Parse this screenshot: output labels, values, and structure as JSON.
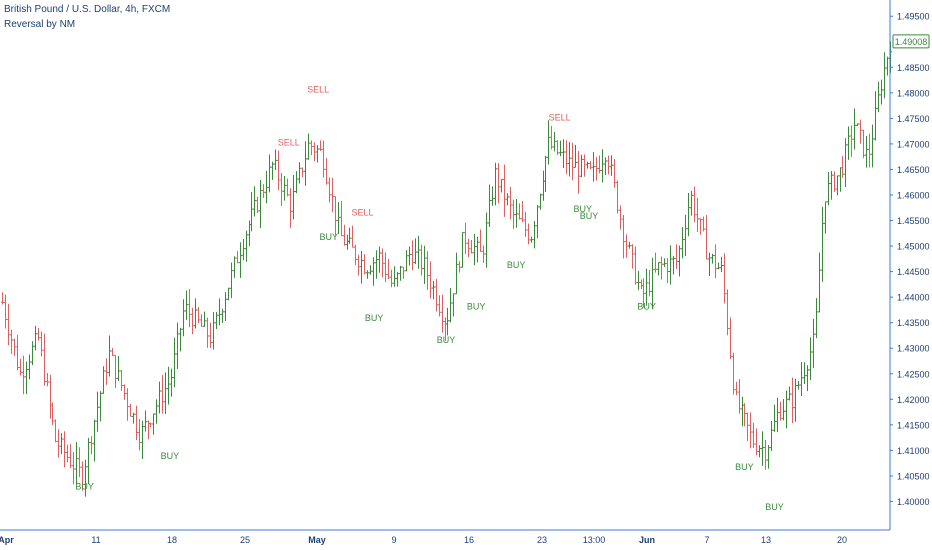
{
  "header": {
    "title": "British Pound / U.S. Dollar, 4h, FXCM",
    "indicator": "Reversal by NM"
  },
  "colors": {
    "up": "#3a8a3a",
    "down": "#e06060",
    "buy_label": "#3a8a3a",
    "sell_label": "#e06060",
    "axis": "#3c78d8",
    "axis_text": "#1f3f73",
    "last_price_box": "#3a8a3a"
  },
  "chart_data": {
    "type": "ohlc",
    "price_axis": {
      "min": 1.395,
      "max": 1.497,
      "ticks": [
        "1.49500",
        "1.48500",
        "1.48000",
        "1.47500",
        "1.47000",
        "1.46500",
        "1.46000",
        "1.45500",
        "1.45000",
        "1.44500",
        "1.44000",
        "1.43500",
        "1.43000",
        "1.42500",
        "1.42000",
        "1.41500",
        "1.41000",
        "1.40500",
        "1.40000"
      ],
      "last_price": "1.49008"
    },
    "time_axis": {
      "labels": [
        "Apr",
        "11",
        "18",
        "25",
        "May",
        "9",
        "16",
        "23",
        "13:00",
        "Jun",
        "7",
        "13",
        "20"
      ],
      "bold": [
        "Apr",
        "May",
        "Jun"
      ]
    },
    "keypoints": [
      [
        1.439,
        0
      ],
      [
        1.425,
        0.02
      ],
      [
        1.432,
        0.04
      ],
      [
        1.412,
        0.06
      ],
      [
        1.405,
        0.09
      ],
      [
        1.429,
        0.12
      ],
      [
        1.413,
        0.155
      ],
      [
        1.424,
        0.19
      ],
      [
        1.438,
        0.205
      ],
      [
        1.432,
        0.235
      ],
      [
        1.451,
        0.27
      ],
      [
        1.466,
        0.305
      ],
      [
        1.458,
        0.325
      ],
      [
        1.47,
        0.345
      ],
      [
        1.468,
        0.36
      ],
      [
        1.452,
        0.38
      ],
      [
        1.446,
        0.41
      ],
      [
        1.448,
        0.425
      ],
      [
        1.442,
        0.44
      ],
      [
        1.449,
        0.46
      ],
      [
        1.446,
        0.475
      ],
      [
        1.435,
        0.5
      ],
      [
        1.452,
        0.52
      ],
      [
        1.448,
        0.54
      ],
      [
        1.464,
        0.555
      ],
      [
        1.456,
        0.575
      ],
      [
        1.452,
        0.595
      ],
      [
        1.47,
        0.615
      ],
      [
        1.466,
        0.64
      ],
      [
        1.464,
        0.665
      ],
      [
        1.469,
        0.68
      ],
      [
        1.452,
        0.7
      ],
      [
        1.44,
        0.72
      ],
      [
        1.446,
        0.74
      ],
      [
        1.447,
        0.76
      ],
      [
        1.46,
        0.775
      ],
      [
        1.448,
        0.795
      ],
      [
        1.445,
        0.81
      ],
      [
        1.42,
        0.825
      ],
      [
        1.412,
        0.845
      ],
      [
        1.41,
        0.86
      ],
      [
        1.418,
        0.875
      ],
      [
        1.42,
        0.89
      ],
      [
        1.427,
        0.905
      ],
      [
        1.432,
        0.915
      ],
      [
        1.46,
        0.925
      ],
      [
        1.465,
        0.945
      ],
      [
        1.474,
        0.96
      ],
      [
        1.467,
        0.975
      ],
      [
        1.482,
        0.99
      ],
      [
        1.49,
        1.0
      ]
    ],
    "signals": [
      {
        "text": "BUY",
        "t": 0.093,
        "price": 1.4045,
        "side": "below"
      },
      {
        "text": "BUY",
        "t": 0.189,
        "price": 1.4105,
        "side": "below"
      },
      {
        "text": "SELL",
        "t": 0.356,
        "price": 1.4793,
        "side": "above"
      },
      {
        "text": "SELL",
        "t": 0.323,
        "price": 1.4689,
        "side": "above"
      },
      {
        "text": "BUY",
        "t": 0.368,
        "price": 1.4533,
        "side": "below"
      },
      {
        "text": "SELL",
        "t": 0.406,
        "price": 1.4552,
        "side": "above"
      },
      {
        "text": "BUY",
        "t": 0.419,
        "price": 1.4375,
        "side": "below"
      },
      {
        "text": "BUY",
        "t": 0.5,
        "price": 1.4332,
        "side": "below"
      },
      {
        "text": "BUY",
        "t": 0.534,
        "price": 1.4397,
        "side": "below"
      },
      {
        "text": "BUY",
        "t": 0.579,
        "price": 1.4479,
        "side": "below"
      },
      {
        "text": "SELL",
        "t": 0.628,
        "price": 1.4738,
        "side": "above"
      },
      {
        "text": "BUY",
        "t": 0.654,
        "price": 1.4588,
        "side": "below"
      },
      {
        "text": "BUY",
        "t": 0.661,
        "price": 1.4575,
        "side": "below"
      },
      {
        "text": "BUY",
        "t": 0.726,
        "price": 1.4397,
        "side": "below"
      },
      {
        "text": "BUY",
        "t": 0.836,
        "price": 1.4083,
        "side": "below"
      },
      {
        "text": "BUY",
        "t": 0.87,
        "price": 1.4005,
        "side": "below"
      }
    ]
  }
}
